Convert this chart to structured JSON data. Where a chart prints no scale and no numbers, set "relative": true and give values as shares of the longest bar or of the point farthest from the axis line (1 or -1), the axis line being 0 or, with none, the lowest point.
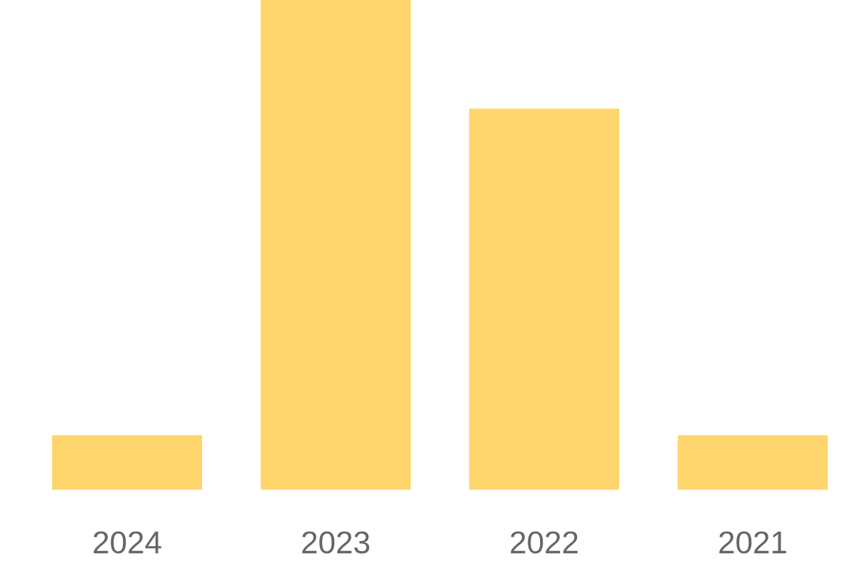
{
  "chart_data": {
    "type": "bar",
    "relative": true,
    "categories": [
      "2024",
      "2023",
      "2022",
      "2021"
    ],
    "values": [
      0.111,
      1,
      0.778,
      0.111
    ],
    "color": "#fed56b"
  }
}
